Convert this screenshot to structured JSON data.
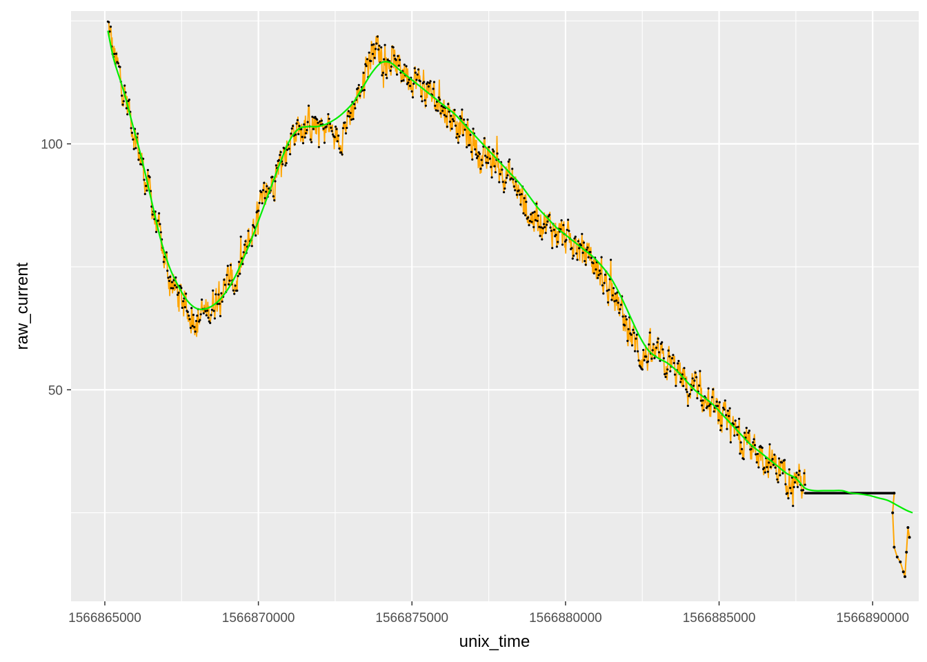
{
  "chart_data": {
    "type": "line",
    "title": "",
    "xlabel": "unix_time",
    "ylabel": "raw_current",
    "xlim": [
      1566863900,
      1566891500
    ],
    "ylim": [
      7,
      127
    ],
    "xticks": [
      1566865000,
      1566870000,
      1566875000,
      1566880000,
      1566885000,
      1566890000
    ],
    "xtick_labels": [
      "1566865000",
      "1566870000",
      "1566875000",
      "1566880000",
      "1566885000",
      "1566890000"
    ],
    "yticks": [
      50,
      100
    ],
    "ytick_labels": [
      "50",
      "100"
    ],
    "grid": true,
    "legend": "none",
    "colors": {
      "panel": "#EBEBEB",
      "grid": "#FFFFFF",
      "raw_line": "#FFA500",
      "points": "#000000",
      "smooth": "#00EE00"
    },
    "series": [
      {
        "role": "raw",
        "mark": "line+points",
        "noise_amplitude": 2.5,
        "x": [
          1566865100,
          1566865300,
          1566865600,
          1566865900,
          1566866200,
          1566866500,
          1566866800,
          1566867100,
          1566867500,
          1566867800,
          1566868100,
          1566868400,
          1566868700,
          1566869000,
          1566869300,
          1566869600,
          1566869900,
          1566870200,
          1566870500,
          1566870800,
          1566871100,
          1566871400,
          1566871700,
          1566872000,
          1566872300,
          1566872600,
          1566872900,
          1566873200,
          1566873500,
          1566873800,
          1566874100,
          1566874400,
          1566874700,
          1566875000,
          1566875300,
          1566875600,
          1566875900,
          1566876200,
          1566876500,
          1566876800,
          1566877100,
          1566877400,
          1566877700,
          1566878000,
          1566878300,
          1566878600,
          1566878900,
          1566879200,
          1566879500,
          1566879800,
          1566880100,
          1566880400,
          1566880700,
          1566881000,
          1566881300,
          1566881600,
          1566881900,
          1566882200,
          1566882500,
          1566882800,
          1566883100,
          1566883400,
          1566883700,
          1566884000,
          1566884300,
          1566884600,
          1566884900,
          1566885200,
          1566885500,
          1566885800,
          1566886100,
          1566886400,
          1566886700,
          1566887000,
          1566887300,
          1566887600,
          1566887800
        ],
        "y": [
          124,
          118,
          111,
          104,
          96,
          89,
          80,
          73,
          68,
          65,
          65,
          66,
          70,
          72,
          72,
          78,
          84,
          89,
          93,
          98,
          102,
          104,
          104,
          103,
          103,
          101,
          105,
          109,
          115,
          120,
          118,
          116,
          115,
          114,
          112,
          110,
          108,
          106,
          104,
          102,
          99,
          96,
          97,
          95,
          92,
          88,
          85,
          85,
          83,
          82,
          80,
          79,
          77,
          75,
          72,
          69,
          64,
          60,
          57,
          57,
          56,
          55,
          53,
          50,
          49,
          47,
          45,
          43,
          41,
          40,
          38,
          37,
          35,
          34,
          33,
          32,
          30
        ]
      },
      {
        "role": "flat",
        "mark": "line+points",
        "x": [
          1566887800,
          1566888100,
          1566888400,
          1566888700,
          1566889000,
          1566889300,
          1566889600,
          1566889900,
          1566890200,
          1566890500,
          1566890700
        ],
        "y": [
          29,
          29,
          29,
          29,
          29,
          29,
          29,
          29,
          29,
          29,
          29
        ]
      },
      {
        "role": "tail",
        "mark": "line+points",
        "x": [
          1566890700,
          1566890650,
          1566890700,
          1566890800,
          1566890900,
          1566891000,
          1566891050,
          1566891100,
          1566891150,
          1566891200
        ],
        "y": [
          29,
          25,
          18,
          16,
          15,
          13,
          12,
          17,
          22,
          20
        ]
      },
      {
        "role": "smooth",
        "mark": "line",
        "x": [
          1566865100,
          1566865300,
          1566865600,
          1566865900,
          1566866200,
          1566866500,
          1566866800,
          1566867100,
          1566867400,
          1566867700,
          1566868000,
          1566868300,
          1566868600,
          1566868900,
          1566869200,
          1566869500,
          1566869800,
          1566870100,
          1566870400,
          1566870700,
          1566871000,
          1566871300,
          1566871600,
          1566871900,
          1566872200,
          1566872500,
          1566872800,
          1566873100,
          1566873400,
          1566873700,
          1566874000,
          1566874300,
          1566874600,
          1566874900,
          1566875200,
          1566875500,
          1566875800,
          1566876100,
          1566876400,
          1566876700,
          1566877000,
          1566877300,
          1566877600,
          1566877900,
          1566878200,
          1566878500,
          1566878800,
          1566879100,
          1566879400,
          1566879700,
          1566880000,
          1566880300,
          1566880600,
          1566880900,
          1566881200,
          1566881500,
          1566881800,
          1566882100,
          1566882400,
          1566882700,
          1566883000,
          1566883300,
          1566883600,
          1566883900,
          1566884200,
          1566884500,
          1566884800,
          1566885100,
          1566885400,
          1566885700,
          1566886000,
          1566886300,
          1566886600,
          1566886900,
          1566887200,
          1566887500,
          1566887800,
          1566888100,
          1566888400,
          1566888700,
          1566889000,
          1566889300,
          1566889600,
          1566889900,
          1566890200,
          1566890500,
          1566890800,
          1566891100,
          1566891300
        ],
        "y": [
          123,
          117,
          111,
          104,
          97,
          89,
          81,
          75,
          71,
          68,
          66.5,
          66.5,
          67.5,
          69.5,
          72.5,
          76.5,
          81,
          86,
          91,
          96,
          100.5,
          103,
          103.5,
          103.5,
          104,
          105,
          106.5,
          108.5,
          111.5,
          114.5,
          116.5,
          116.5,
          115,
          113.5,
          112,
          110.5,
          109,
          107.5,
          106,
          104,
          102,
          100,
          98,
          96,
          94,
          92,
          89.5,
          87,
          85,
          83,
          81.5,
          80,
          78.5,
          77,
          75,
          72.5,
          69,
          65,
          61,
          58,
          56.5,
          55.5,
          54,
          52,
          50,
          48.5,
          47,
          45,
          43,
          41,
          39,
          37.5,
          36,
          34.5,
          33,
          32,
          30,
          29.5,
          29.5,
          29.5,
          29.5,
          29,
          28.8,
          28.5,
          28,
          27.5,
          26.5,
          25.5,
          25
        ]
      }
    ]
  }
}
